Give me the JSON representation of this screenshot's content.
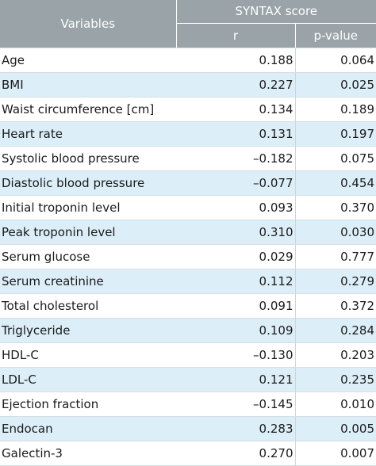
{
  "header": {
    "variables": "Variables",
    "group": "SYNTAX score",
    "r": "r",
    "p": "p-value"
  },
  "rows": [
    {
      "variable": "Age",
      "r": "0.188",
      "p": "0.064"
    },
    {
      "variable": "BMI",
      "r": "0.227",
      "p": "0.025"
    },
    {
      "variable": "Waist circumference [cm]",
      "r": "0.134",
      "p": "0.189"
    },
    {
      "variable": "Heart rate",
      "r": "0.131",
      "p": "0.197"
    },
    {
      "variable": "Systolic blood pressure",
      "r": "–0.182",
      "p": "0.075"
    },
    {
      "variable": "Diastolic blood pressure",
      "r": "–0.077",
      "p": "0.454"
    },
    {
      "variable": "Initial troponin level",
      "r": "0.093",
      "p": "0.370"
    },
    {
      "variable": "Peak troponin level",
      "r": "0.310",
      "p": "0.030"
    },
    {
      "variable": "Serum glucose",
      "r": "0.029",
      "p": "0.777"
    },
    {
      "variable": "Serum creatinine",
      "r": "0.112",
      "p": "0.279"
    },
    {
      "variable": "Total cholesterol",
      "r": "0.091",
      "p": "0.372"
    },
    {
      "variable": "Triglyceride",
      "r": "0.109",
      "p": "0.284"
    },
    {
      "variable": "HDL-C",
      "r": "–0.130",
      "p": "0.203"
    },
    {
      "variable": "LDL-C",
      "r": "0.121",
      "p": "0.235"
    },
    {
      "variable": "Ejection fraction",
      "r": "–0.145",
      "p": "0.010"
    },
    {
      "variable": "Endocan",
      "r": "0.283",
      "p": "0.005"
    },
    {
      "variable": "Galectin-3",
      "r": "0.270",
      "p": "0.007"
    }
  ]
}
